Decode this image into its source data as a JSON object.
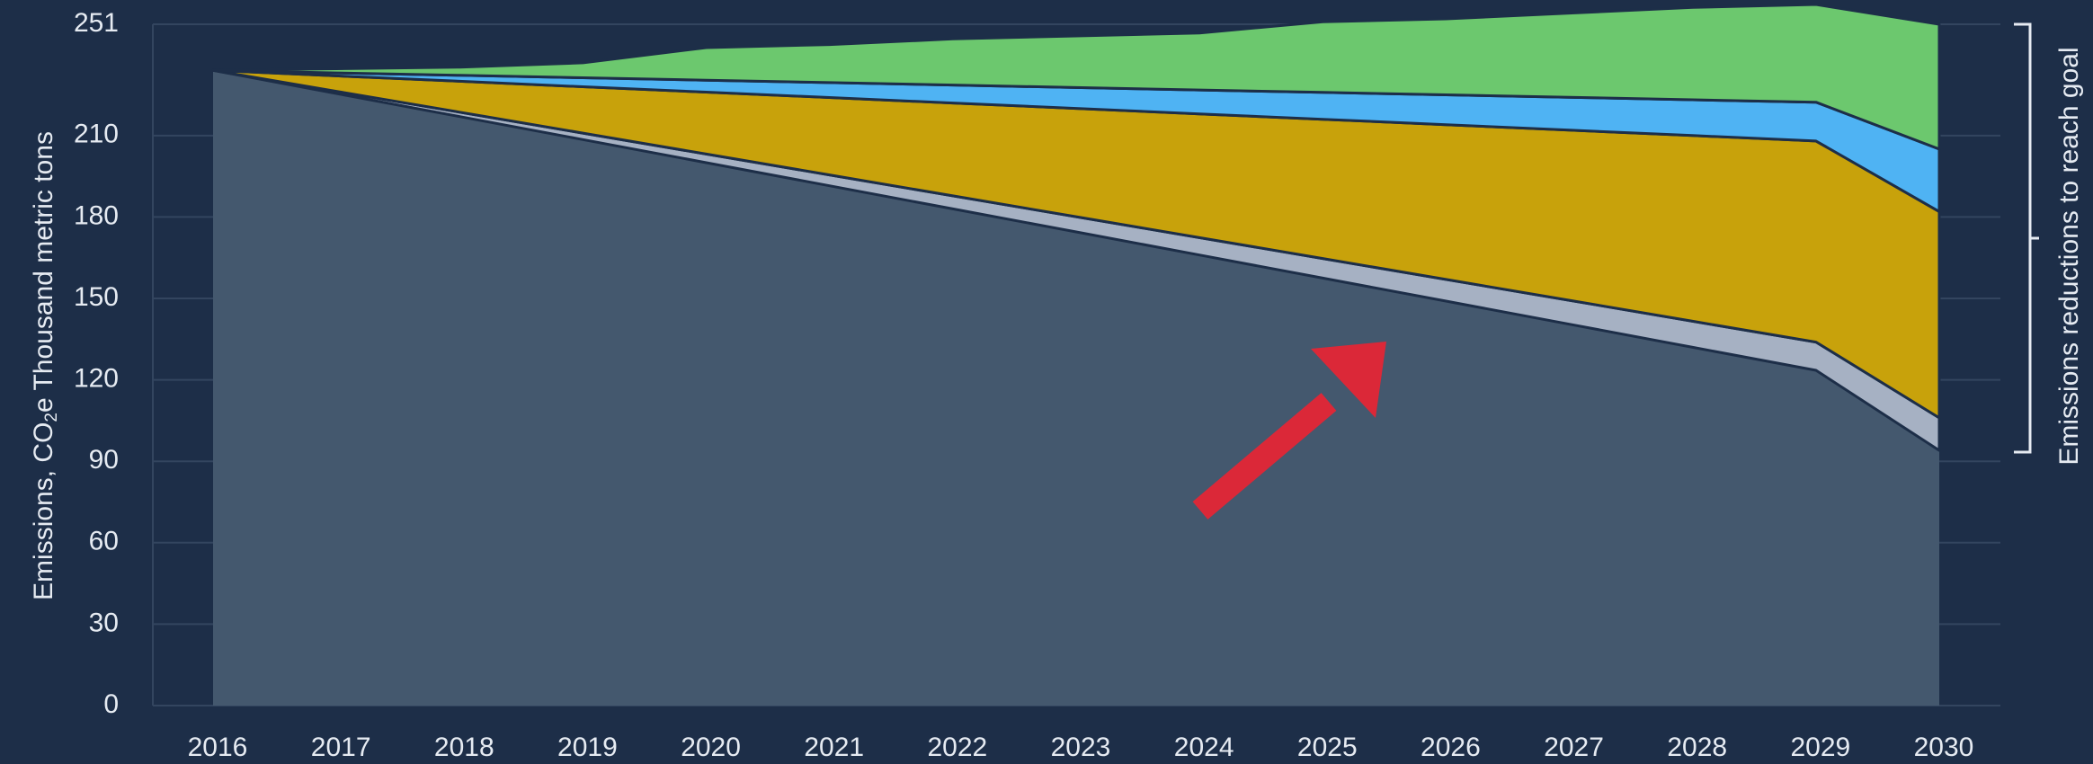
{
  "chart_data": {
    "type": "area",
    "stacked": true,
    "x": [
      2016,
      2017,
      2018,
      2019,
      2020,
      2021,
      2022,
      2023,
      2024,
      2025,
      2026,
      2027,
      2028,
      2029,
      2030
    ],
    "ylim": [
      0,
      251
    ],
    "yticks": [
      0,
      30,
      60,
      90,
      120,
      150,
      180,
      210,
      251
    ],
    "ylabel_parts": [
      "Emissions, CO",
      "2",
      "e Thousand metric tons"
    ],
    "right_annotation": "Emissions reductions to reach goal",
    "grid": true,
    "series": [
      {
        "color": "#44586e",
        "values": [
          234,
          225.5,
          217,
          208.5,
          200,
          191.5,
          183,
          174.5,
          166,
          157.5,
          149,
          140.5,
          132,
          123.5,
          94
        ]
      },
      {
        "color": "#a6b1c3",
        "values": [
          0,
          0.8,
          1.6,
          2.4,
          3.2,
          4.0,
          4.8,
          5.6,
          6.4,
          7.2,
          8.0,
          8.8,
          9.6,
          10.4,
          12
        ]
      },
      {
        "color": "#c8a20b",
        "values": [
          0,
          5.7,
          11.4,
          17.1,
          22.8,
          28.5,
          34.2,
          39.9,
          45.6,
          51.3,
          57,
          62.7,
          68.4,
          74.1,
          76
        ]
      },
      {
        "color": "#4fb3f3",
        "values": [
          0,
          1.1,
          2.2,
          3.3,
          4.4,
          5.5,
          6.6,
          7.7,
          8.8,
          9.9,
          11,
          12.1,
          13.2,
          14.3,
          23
        ]
      },
      {
        "color": "#6cc86e",
        "values": [
          0,
          1.5,
          3,
          5.5,
          12,
          14,
          17,
          19,
          21,
          26,
          28,
          31,
          34,
          36,
          46
        ]
      }
    ]
  },
  "annotation": {
    "type": "arrow",
    "color": "#db2838"
  }
}
